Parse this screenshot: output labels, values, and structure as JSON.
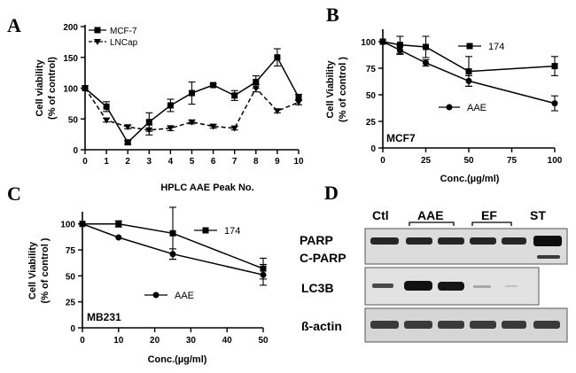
{
  "chart_data": [
    {
      "panel": "A",
      "type": "line",
      "x": [
        0,
        1,
        2,
        3,
        4,
        5,
        6,
        7,
        8,
        9,
        10
      ],
      "xlim": [
        0,
        10
      ],
      "ylim": [
        0,
        200
      ],
      "x_ticks": [
        "0",
        "1",
        "2",
        "3",
        "4",
        "5",
        "6",
        "7",
        "8",
        "9",
        "10"
      ],
      "y_ticks": [
        "0",
        "50",
        "100",
        "150",
        "200"
      ],
      "ylabel_line1": "Cell viability",
      "ylabel_line2": "(% of control)",
      "xlabel": "HPLC AAE Peak No.",
      "legend_position": "top-left",
      "series": [
        {
          "name": "MCF-7",
          "marker": "square",
          "dash": false,
          "values": [
            100,
            70,
            12,
            45,
            72,
            92,
            105,
            88,
            110,
            150,
            85
          ],
          "errors": [
            0,
            8,
            3,
            15,
            10,
            18,
            2,
            8,
            10,
            14,
            5
          ]
        },
        {
          "name": "LNCap",
          "marker": "triangle-down",
          "dash": true,
          "values": [
            100,
            48,
            37,
            32,
            35,
            45,
            38,
            35,
            100,
            63,
            77
          ],
          "errors": [
            0,
            3,
            3,
            8,
            4,
            3,
            3,
            3,
            6,
            3,
            4
          ]
        }
      ]
    },
    {
      "panel": "B",
      "type": "line",
      "x": [
        0,
        10,
        25,
        50,
        100
      ],
      "xlim": [
        0,
        100
      ],
      "ylim": [
        0,
        110
      ],
      "x_ticks": [
        "0",
        "25",
        "50",
        "75",
        "100"
      ],
      "y_ticks": [
        "0",
        "25",
        "50",
        "75",
        "100"
      ],
      "ylabel_line1": "Cell Viability",
      "ylabel_line2": "(% of control )",
      "xlabel": "Conc.(µg/ml)",
      "cell_line": "MCF7",
      "series": [
        {
          "name": "174",
          "marker": "square",
          "values": [
            100,
            97,
            95,
            72,
            77
          ],
          "errors": [
            0,
            8,
            10,
            14,
            9
          ]
        },
        {
          "name": "AAE",
          "marker": "circle",
          "values": [
            100,
            92,
            80,
            63,
            42
          ],
          "errors": [
            0,
            4,
            3,
            5,
            7
          ]
        }
      ]
    },
    {
      "panel": "C",
      "type": "line",
      "x": [
        0,
        10,
        25,
        50
      ],
      "xlim": [
        0,
        50
      ],
      "ylim": [
        0,
        110
      ],
      "x_ticks": [
        "0",
        "10",
        "20",
        "30",
        "40",
        "50"
      ],
      "y_ticks": [
        "0",
        "25",
        "50",
        "75",
        "100"
      ],
      "ylabel_line1": "Cell Viability",
      "ylabel_line2": "(% of control )",
      "xlabel": "Conc.(µg/ml)",
      "cell_line": "MB231",
      "series": [
        {
          "name": "174",
          "marker": "square",
          "values": [
            100,
            100,
            91,
            57
          ],
          "errors": [
            0,
            3,
            25,
            10
          ]
        },
        {
          "name": "AAE",
          "marker": "circle",
          "values": [
            100,
            87,
            71,
            51
          ],
          "errors": [
            0,
            0,
            5,
            10
          ]
        }
      ]
    }
  ],
  "blot": {
    "letter": "D",
    "columns": [
      "Ctl",
      "AAE",
      "EF",
      "ST"
    ],
    "rows": {
      "parp": "PARP",
      "cparp": "C-PARP",
      "lc3b": "LC3B",
      "actin": "ß-actin"
    }
  },
  "panel_letters": {
    "a": "A",
    "b": "B",
    "c": "C"
  }
}
